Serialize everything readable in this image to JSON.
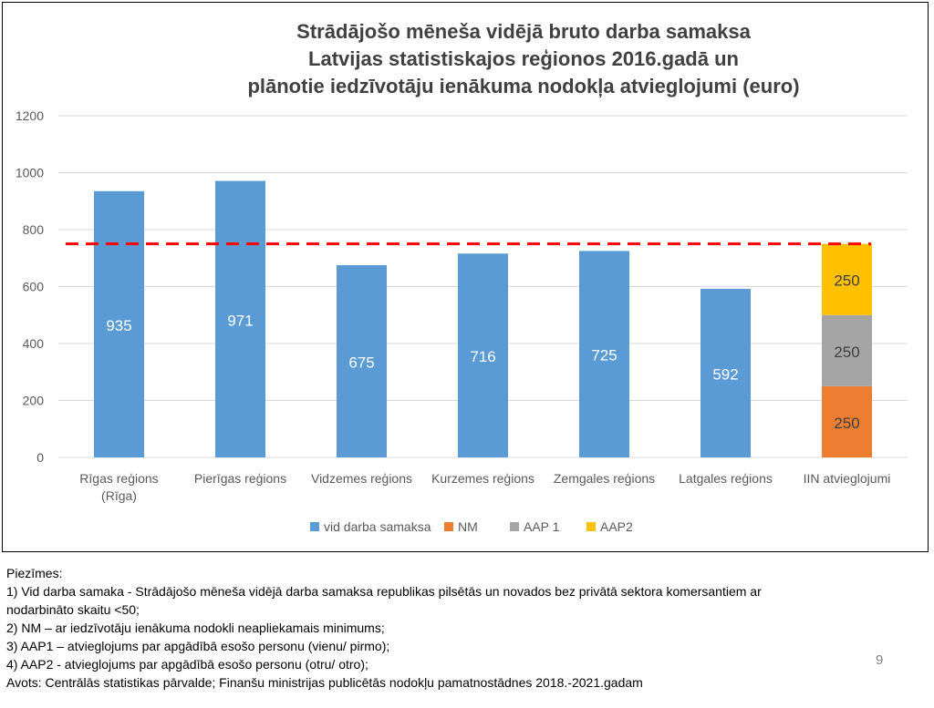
{
  "chart_data": {
    "type": "bar",
    "title_lines": [
      "Strādājošo mēneša vidējā bruto darba samaksa",
      "Latvijas statistiskajos reģionos  2016.gadā un",
      "plānotie iedzīvotāju ienākuma nodokļa atvieglojumi (euro)"
    ],
    "ylim": [
      0,
      1200
    ],
    "yticks": [
      0,
      200,
      400,
      600,
      800,
      1000,
      1200
    ],
    "grid": true,
    "legend_position": "bottom",
    "categories": [
      [
        "Rīgas reģions",
        "(Rīga)"
      ],
      [
        "Pierīgas reģions"
      ],
      [
        "Vidzemes reģions"
      ],
      [
        "Kurzemes reģions"
      ],
      [
        "Zemgales reģions"
      ],
      [
        "Latgales reģions"
      ],
      [
        "IIN atvieglojumi"
      ]
    ],
    "series": [
      {
        "name": "vid darba samaksa",
        "color": "#5b9bd5",
        "values": [
          935,
          971,
          675,
          716,
          725,
          592,
          null
        ]
      },
      {
        "name": "NM",
        "color": "#ed7d31",
        "values": [
          null,
          null,
          null,
          null,
          null,
          null,
          250
        ]
      },
      {
        "name": "AAP 1",
        "color": "#a5a5a5",
        "values": [
          null,
          null,
          null,
          null,
          null,
          null,
          250
        ]
      },
      {
        "name": "AAP2",
        "color": "#ffc000",
        "values": [
          null,
          null,
          null,
          null,
          null,
          null,
          250
        ]
      }
    ],
    "reference_line": {
      "value": 750,
      "color": "#ff0000",
      "style": "dashed"
    }
  },
  "notes": {
    "heading": "Piezīmes:",
    "lines": [
      "1) Vid darba samaka - Strādājošo mēneša vidējā darba samaksa republikas pilsētās un novados bez privātā sektora komersantiem ar",
      "nodarbināto skaitu <50;",
      "2) NM – ar iedzīvotāju ienākuma nodokli neapliekamais minimums;",
      "3) AAP1 – atvieglojums par apgādībā esošo personu (vienu/ pirmo);",
      "4) AAP2 - atvieglojums par apgādībā esošo personu (otru/ otro);",
      "Avots: Centrālās statistikas pārvalde; Finanšu ministrijas publicētās nodokļu pamatnostādnes 2018.-2021.gadam"
    ]
  },
  "page_number": "9"
}
